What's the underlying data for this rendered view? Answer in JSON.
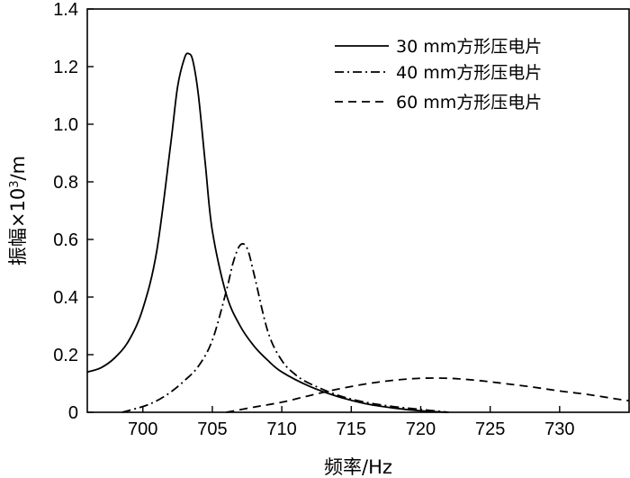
{
  "chart_data": {
    "type": "line",
    "title": "",
    "xlabel": "频率/Hz",
    "ylabel_main": "振幅×10",
    "ylabel_sup": "3",
    "ylabel_unit": "/m",
    "xlim": [
      696,
      735
    ],
    "ylim": [
      0,
      1.4
    ],
    "x_ticks": [
      700,
      705,
      710,
      715,
      720,
      725,
      730
    ],
    "y_ticks": [
      0,
      0.2,
      0.4,
      0.6,
      0.8,
      1.0,
      1.2,
      1.4
    ],
    "y_tick_labels": [
      "0",
      "0.2",
      "0.4",
      "0.6",
      "0.8",
      "1.0",
      "1.2",
      "1.4"
    ],
    "grid": false,
    "legend_position": "top-right",
    "series": [
      {
        "name": "30 mm方形压电片",
        "dash": "solid",
        "x": [
          696,
          697,
          698,
          699,
          700,
          701,
          702,
          702.5,
          703,
          703.3,
          703.6,
          704,
          704.5,
          705,
          706,
          707,
          708,
          709,
          710,
          712,
          714,
          716,
          718,
          720,
          722
        ],
        "y": [
          0.14,
          0.155,
          0.19,
          0.25,
          0.36,
          0.56,
          0.93,
          1.13,
          1.23,
          1.245,
          1.22,
          1.1,
          0.86,
          0.63,
          0.41,
          0.3,
          0.23,
          0.18,
          0.14,
          0.09,
          0.055,
          0.03,
          0.015,
          0.005,
          0
        ]
      },
      {
        "name": "40 mm方形压电片",
        "dash": "dashdot",
        "x": [
          698.5,
          700,
          701,
          702,
          703,
          704,
          705,
          706,
          706.5,
          707,
          707.5,
          708,
          709,
          710,
          711,
          712,
          714,
          716,
          718,
          720,
          722
        ],
        "y": [
          0,
          0.02,
          0.04,
          0.07,
          0.11,
          0.16,
          0.25,
          0.42,
          0.52,
          0.58,
          0.57,
          0.48,
          0.28,
          0.18,
          0.13,
          0.1,
          0.06,
          0.035,
          0.02,
          0.01,
          0
        ]
      },
      {
        "name": "60 mm方形压电片",
        "dash": "dashed",
        "x": [
          706,
          708,
          710,
          712,
          714,
          716,
          718,
          720,
          722,
          724,
          726,
          728,
          730,
          732,
          734,
          735
        ],
        "y": [
          0,
          0.018,
          0.035,
          0.058,
          0.08,
          0.098,
          0.111,
          0.118,
          0.118,
          0.111,
          0.1,
          0.088,
          0.074,
          0.062,
          0.047,
          0.04
        ]
      }
    ]
  }
}
